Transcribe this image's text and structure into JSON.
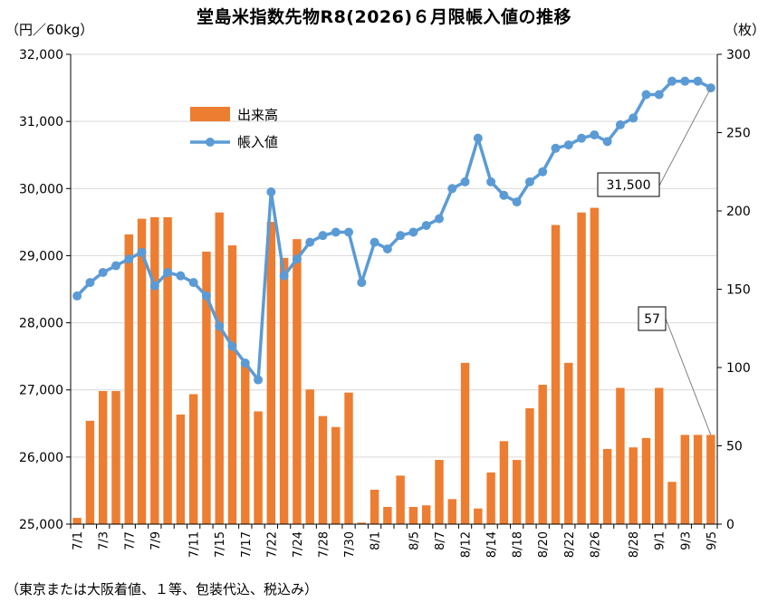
{
  "chart_data": {
    "type": "bar+line",
    "title": "堂島米指数先物R8(2026)６月限帳入値の推移",
    "left_axis_unit": "（円／60kg）",
    "right_axis_unit": "（枚）",
    "footnote": "（東京または大阪着値、１等、包装代込、税込み）",
    "left_axis": {
      "min": 25000,
      "max": 32000,
      "step": 1000,
      "ticks": [
        "25,000",
        "26,000",
        "27,000",
        "28,000",
        "29,000",
        "30,000",
        "31,000",
        "32,000"
      ]
    },
    "right_axis": {
      "min": 0,
      "max": 300,
      "step": 50,
      "ticks": [
        "0",
        "50",
        "100",
        "150",
        "200",
        "250",
        "300"
      ]
    },
    "x_tick_labels": [
      "7/1",
      "7/3",
      "7/7",
      "7/9",
      "7/11",
      "7/15",
      "7/17",
      "7/22",
      "7/24",
      "7/28",
      "7/30",
      "8/1",
      "8/5",
      "8/7",
      "8/12",
      "8/14",
      "8/18",
      "8/20",
      "8/22",
      "8/26",
      "8/28",
      "9/1",
      "9/3",
      "9/5"
    ],
    "legend": {
      "placement": "upper-left-inside",
      "entries": [
        {
          "label": "出来高",
          "color": "#ed7d31",
          "kind": "bar"
        },
        {
          "label": "帳入値",
          "color": "#5b9bd5",
          "kind": "line"
        }
      ]
    },
    "annotations": [
      {
        "text": "31,500",
        "point_index": 49
      },
      {
        "text": "57",
        "point_index": 49
      }
    ],
    "series": [
      {
        "name": "出来高",
        "axis": "right",
        "color": "#ed7d31",
        "values": [
          4,
          66,
          85,
          85,
          185,
          195,
          196,
          196,
          70,
          83,
          174,
          199,
          178,
          103,
          72,
          193,
          170,
          182,
          86,
          69,
          62,
          84,
          1,
          22,
          11,
          31,
          11,
          12,
          41,
          16,
          103,
          10,
          33,
          53,
          41,
          74,
          89,
          191,
          103,
          199,
          202,
          48,
          87,
          49,
          55,
          87,
          27,
          57,
          57,
          57
        ]
      },
      {
        "name": "帳入値",
        "axis": "left",
        "color": "#5b9bd5",
        "values": [
          28400,
          28600,
          28750,
          28850,
          28950,
          29050,
          28550,
          28750,
          28700,
          28600,
          28400,
          27950,
          27650,
          27400,
          27150,
          29950,
          28700,
          28950,
          29200,
          29300,
          29350,
          29350,
          28600,
          29200,
          29100,
          29300,
          29350,
          29450,
          29550,
          30000,
          30100,
          30750,
          30100,
          29900,
          29800,
          30100,
          30250,
          30600,
          30650,
          30750,
          30800,
          30700,
          30950,
          31050,
          31400,
          31400,
          31600,
          31600,
          31600,
          31500
        ]
      }
    ]
  }
}
